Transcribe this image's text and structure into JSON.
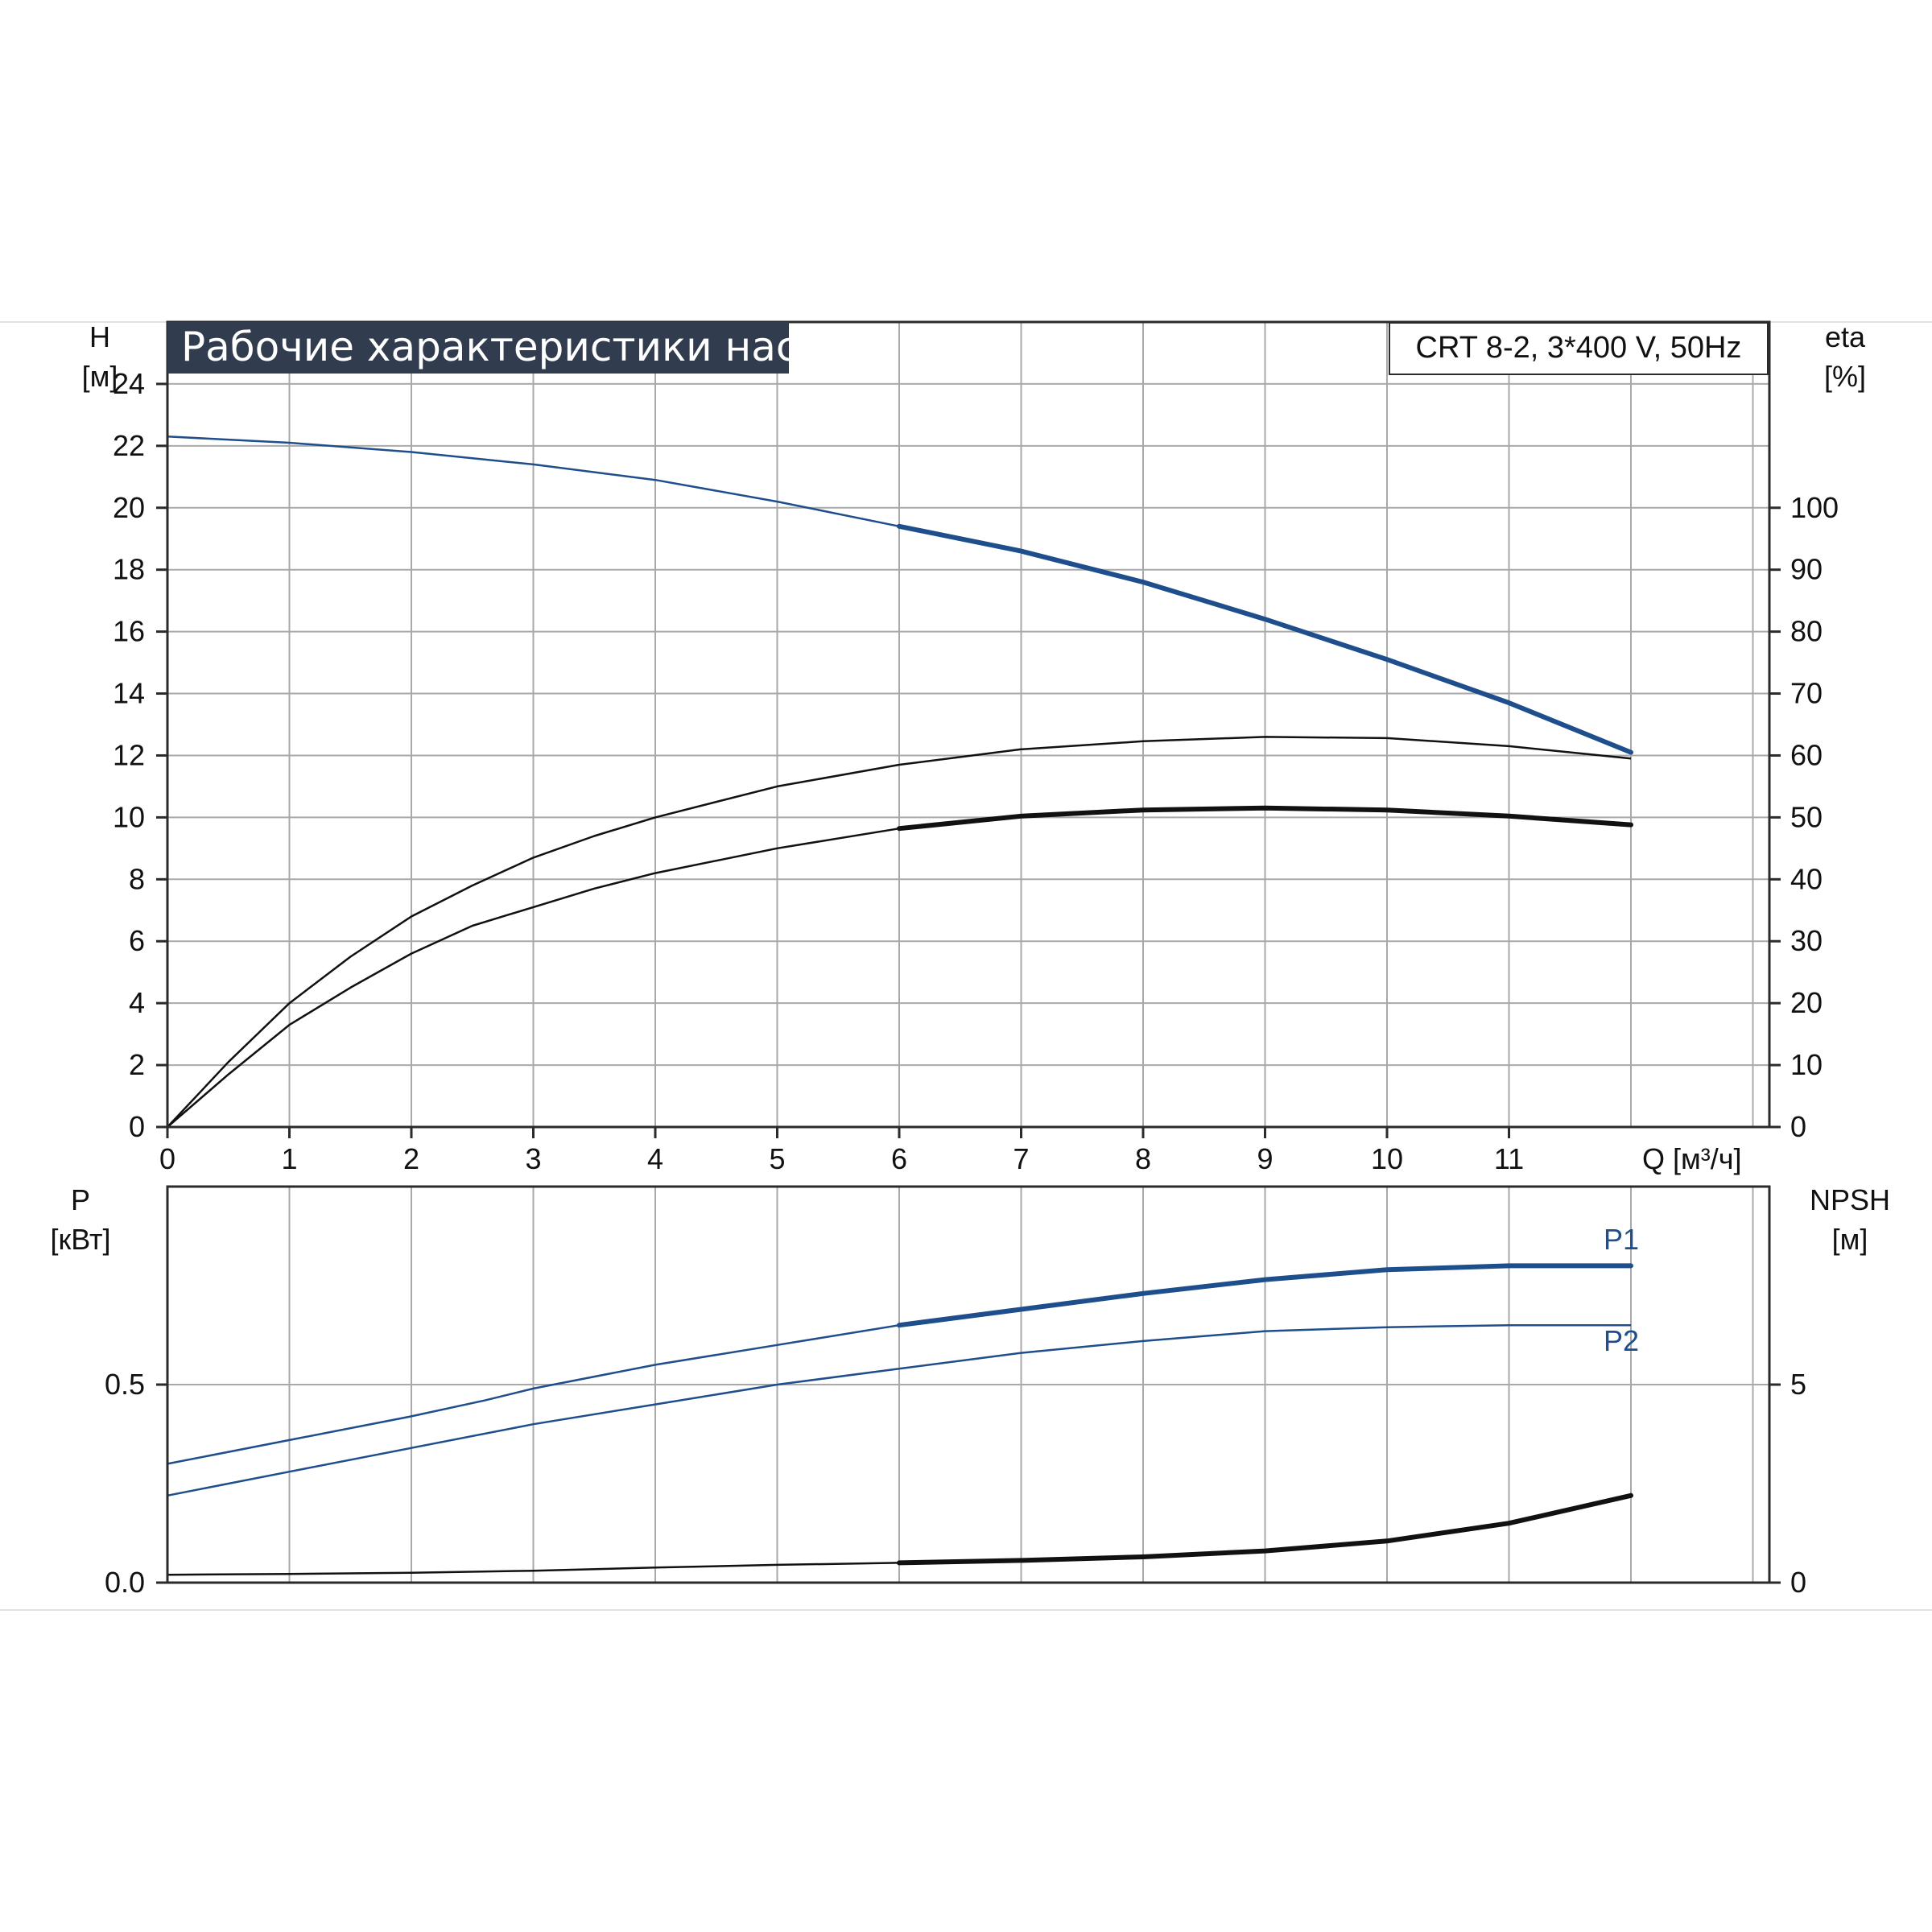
{
  "title": "Рабочие характеристики насоса",
  "model": "CRT 8-2, 3*400 V, 50Hz",
  "colors": {
    "accent_blue": "#1f4e8c",
    "curve_black": "#111111",
    "title_bg": "#313d4f",
    "grid": "#a9a9a9"
  },
  "chart_data": [
    {
      "type": "line",
      "id": "head-efficiency",
      "x_label": "Q [м³/ч]",
      "x_ticks": [
        "0",
        "1",
        "2",
        "3",
        "4",
        "5",
        "6",
        "7",
        "8",
        "9",
        "10",
        "11"
      ],
      "xlim": [
        0,
        13
      ],
      "y_left_label_line1": "H",
      "y_left_label_line2": "[м]",
      "y_left_ticks": [
        "0",
        "2",
        "4",
        "6",
        "8",
        "10",
        "12",
        "14",
        "16",
        "18",
        "20",
        "22",
        "24"
      ],
      "ylim_left": [
        0,
        26
      ],
      "y_right_label_line1": "eta",
      "y_right_label_line2": "[%]",
      "y_right_ticks": [
        "0",
        "10",
        "20",
        "30",
        "40",
        "50",
        "60",
        "70",
        "80",
        "90",
        "100"
      ],
      "ylim_right": [
        0,
        130
      ],
      "grid": true,
      "series": [
        {
          "axis": "left",
          "color": "#1f4e8c",
          "bold_from": 6,
          "x": [
            0,
            1,
            2,
            3,
            4,
            5,
            6,
            7,
            8,
            9,
            10,
            11,
            12
          ],
          "y": [
            22.3,
            22.1,
            21.8,
            21.4,
            20.9,
            20.2,
            19.4,
            18.6,
            17.6,
            16.4,
            15.1,
            13.7,
            12.1
          ]
        },
        {
          "axis": "right",
          "color": "#111111",
          "bold_from": 999,
          "x": [
            0,
            0.5,
            1,
            1.5,
            2,
            2.5,
            3,
            3.5,
            4,
            5,
            6,
            7,
            8,
            9,
            10,
            11,
            12
          ],
          "y": [
            0,
            10.5,
            20,
            27.5,
            34,
            39,
            43.5,
            47,
            50,
            55,
            58.5,
            61,
            62.3,
            63,
            62.8,
            61.5,
            59.5
          ]
        },
        {
          "axis": "right",
          "color": "#111111",
          "bold_from": 6,
          "x": [
            0,
            0.5,
            1,
            1.5,
            2,
            2.5,
            3,
            3.5,
            4,
            5,
            6,
            7,
            8,
            9,
            10,
            11,
            12
          ],
          "y": [
            0,
            8.5,
            16.5,
            22.5,
            28,
            32.5,
            35.5,
            38.5,
            41,
            45,
            48.2,
            50.2,
            51.2,
            51.5,
            51.2,
            50.2,
            48.8
          ]
        }
      ]
    },
    {
      "type": "line",
      "id": "power-npsh",
      "xlim": [
        0,
        13
      ],
      "y_left_label_line1": "P",
      "y_left_label_line2": "[кВт]",
      "y_left_ticks": [
        "0.0",
        "0.5"
      ],
      "ylim_left": [
        0,
        1.0
      ],
      "y_right_label_line1": "NPSH",
      "y_right_label_line2": "[м]",
      "y_right_ticks": [
        "0",
        "5"
      ],
      "ylim_right": [
        0,
        10
      ],
      "grid": true,
      "series": [
        {
          "name": "P1",
          "axis": "left",
          "color": "#1f4e8c",
          "bold_from": 6,
          "x": [
            0,
            1,
            2,
            2.6,
            3,
            4,
            5,
            6,
            7,
            8,
            9,
            10,
            11,
            12
          ],
          "y": [
            0.3,
            0.36,
            0.42,
            0.46,
            0.49,
            0.55,
            0.6,
            0.65,
            0.69,
            0.73,
            0.765,
            0.79,
            0.8,
            0.8
          ]
        },
        {
          "name": "P2",
          "axis": "left",
          "color": "#1f4e8c",
          "bold_from": 999,
          "x": [
            0,
            1,
            2,
            3,
            4,
            5,
            6,
            7,
            8,
            9,
            10,
            11,
            12
          ],
          "y": [
            0.22,
            0.28,
            0.34,
            0.4,
            0.45,
            0.5,
            0.54,
            0.58,
            0.61,
            0.635,
            0.645,
            0.65,
            0.65
          ]
        },
        {
          "axis": "right",
          "color": "#111111",
          "bold_from": 6,
          "x": [
            0,
            1,
            2,
            3,
            4,
            5,
            6,
            7,
            8,
            9,
            10,
            11,
            12
          ],
          "y": [
            0.2,
            0.22,
            0.25,
            0.3,
            0.38,
            0.45,
            0.5,
            0.56,
            0.65,
            0.8,
            1.05,
            1.5,
            2.2
          ]
        }
      ]
    }
  ]
}
